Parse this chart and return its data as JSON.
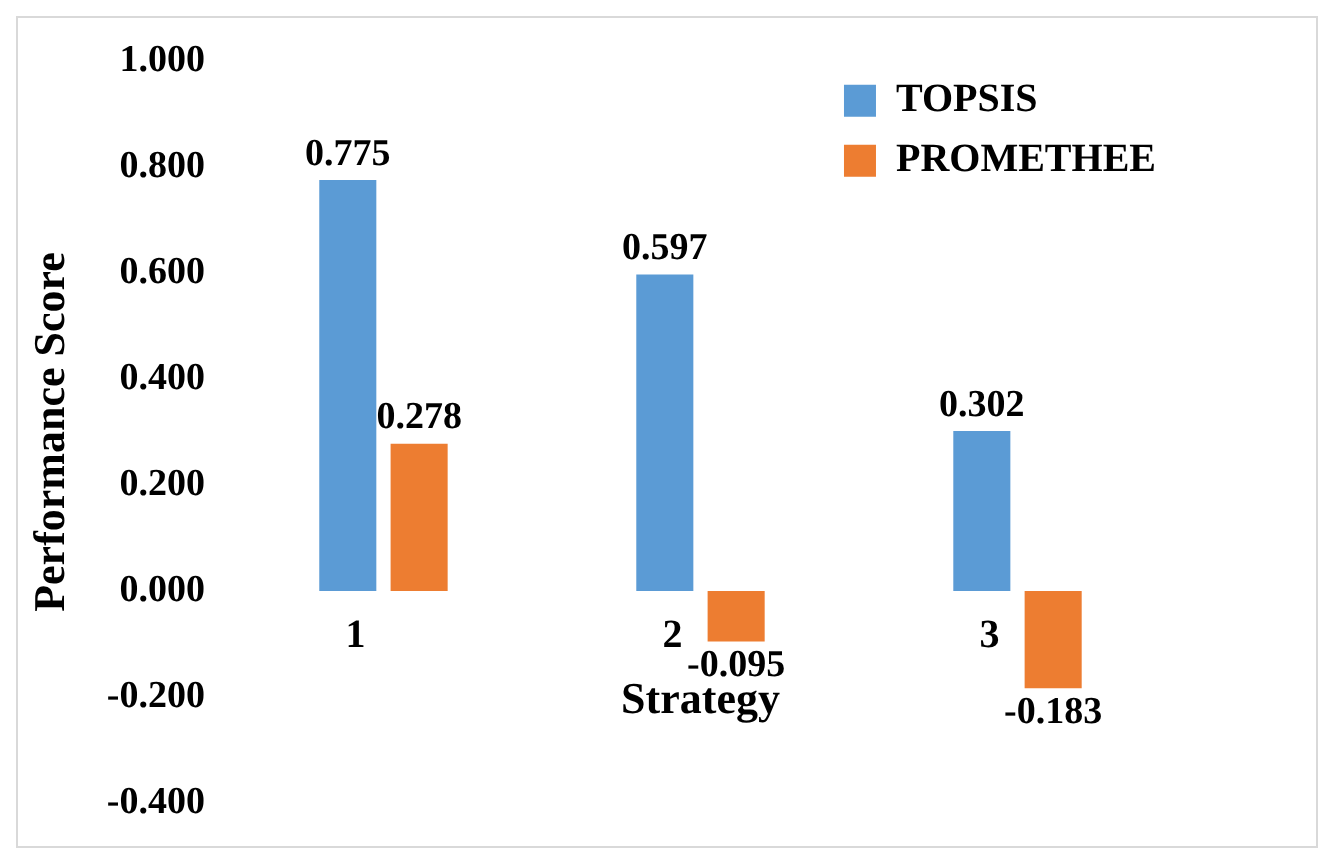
{
  "chart_data": {
    "type": "bar",
    "xlabel": "Strategy",
    "ylabel": "Performance Score",
    "categories": [
      "1",
      "2",
      "3"
    ],
    "series": [
      {
        "name": "TOPSIS",
        "color": "#5b9bd5",
        "values": [
          0.775,
          0.597,
          0.302
        ]
      },
      {
        "name": "PROMETHEE",
        "color": "#ed7d31",
        "values": [
          0.278,
          -0.095,
          -0.183
        ]
      }
    ],
    "ylim": [
      -0.4,
      1.0
    ],
    "yticks": [
      {
        "value": -0.4,
        "label": "-0.400"
      },
      {
        "value": -0.2,
        "label": "-0.200"
      },
      {
        "value": 0,
        "label": "0.000"
      },
      {
        "value": 0.2,
        "label": "0.200"
      },
      {
        "value": 0.4,
        "label": "0.400"
      },
      {
        "value": 0.6,
        "label": "0.600"
      },
      {
        "value": 0.8,
        "label": "0.800"
      },
      {
        "value": 1.0,
        "label": "1.000"
      }
    ],
    "grid": false,
    "legend": "top right",
    "data_labels": true
  }
}
